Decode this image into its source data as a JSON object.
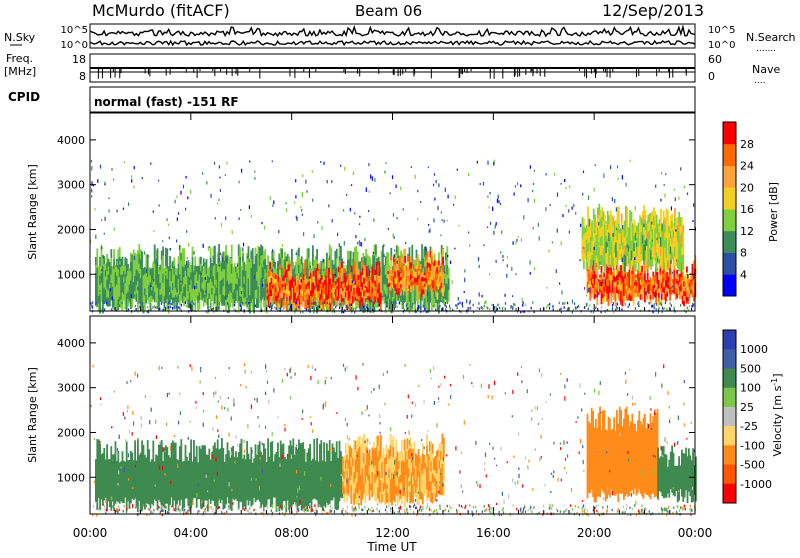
{
  "header": {
    "station": "McMurdo (fitACF)",
    "beam": "Beam 06",
    "date": "12/Sep/2013"
  },
  "strips": {
    "nsky_label": "N.Sky",
    "nsky_ticks": [
      "10^5",
      "10^0"
    ],
    "nsearch_label": "N.Search",
    "nsearch_ticks": [
      "10^5",
      "10^0"
    ],
    "freq_label_1": "Freq.",
    "freq_label_2": "[MHz]",
    "freq_ticks": [
      "18",
      "8"
    ],
    "nave_label": "Nave",
    "nave_ticks": [
      "60",
      "0"
    ],
    "cpid_label": "CPID",
    "cpid_value": "normal (fast) -151 RF"
  },
  "colors": {
    "power_scale": [
      "#0000ff",
      "#2b4ea6",
      "#3c8c5a",
      "#7fcf3f",
      "#f2d020",
      "#ffa23a",
      "#ff6a00",
      "#ff0000"
    ],
    "velocity_scale": [
      "#2b3fb0",
      "#3e5fa8",
      "#3f8a4f",
      "#7cc64a",
      "#c0c0c0",
      "#ffd56a",
      "#ff8c1a",
      "#ff5500",
      "#ff0000"
    ]
  },
  "chart_data": [
    {
      "type": "heatmap",
      "name_panel": "power",
      "ylabel": "Slant Range [km]",
      "ylim": [
        180,
        4600
      ],
      "yticks": [
        1000,
        2000,
        3000,
        4000
      ],
      "xlim": [
        0,
        24
      ],
      "colorbar_label": "Power [dB]",
      "colorbar_ticks": [
        "4",
        "8",
        "12",
        "16",
        "20",
        "24",
        "28"
      ],
      "bands": [
        {
          "x": [
            0.2,
            14.2
          ],
          "y": [
            300,
            1400
          ],
          "value": 14
        },
        {
          "x": [
            7.0,
            11.5
          ],
          "y": [
            350,
            1050
          ],
          "value": 28
        },
        {
          "x": [
            11.8,
            14.0
          ],
          "y": [
            600,
            1300
          ],
          "value": 26
        },
        {
          "x": [
            19.7,
            24.0
          ],
          "y": [
            450,
            1150
          ],
          "value": 28
        },
        {
          "x": [
            19.5,
            23.5
          ],
          "y": [
            1200,
            2300
          ],
          "value": 18
        }
      ]
    },
    {
      "type": "heatmap",
      "name_panel": "velocity",
      "ylabel": "Slant Range [km]",
      "ylim": [
        180,
        4600
      ],
      "yticks": [
        1000,
        2000,
        3000,
        4000
      ],
      "xlim": [
        0,
        24
      ],
      "xlabel": "Time UT",
      "xticks": [
        "00:00",
        "04:00",
        "08:00",
        "12:00",
        "16:00",
        "20:00",
        "00:00"
      ],
      "colorbar_label": "Velocity [m s^-1]",
      "colorbar_ticks": [
        "-1000",
        "-500",
        "-100",
        "-25",
        "25",
        "100",
        "500",
        "1000"
      ],
      "bands": [
        {
          "x": [
            0.2,
            10.0
          ],
          "y": [
            400,
            1600
          ],
          "value": 200
        },
        {
          "x": [
            10.0,
            14.0
          ],
          "y": [
            500,
            1700
          ],
          "value": -100
        },
        {
          "x": [
            19.7,
            22.5
          ],
          "y": [
            600,
            2300
          ],
          "value": -300
        },
        {
          "x": [
            22.5,
            24.0
          ],
          "y": [
            600,
            1500
          ],
          "value": 200
        }
      ]
    }
  ]
}
